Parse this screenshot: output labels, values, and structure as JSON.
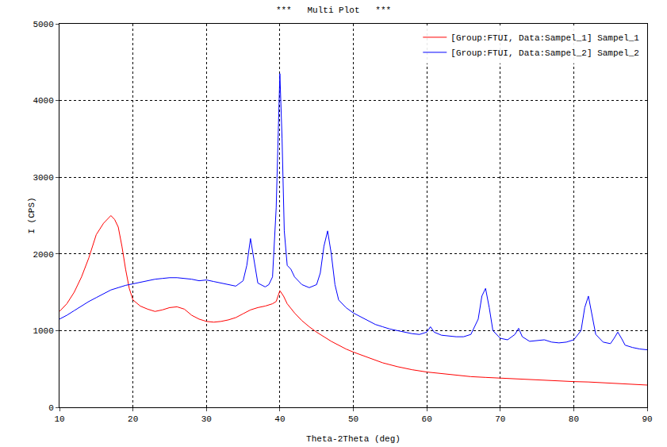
{
  "chart_data": {
    "type": "line",
    "title": "***   Multi Plot   ***",
    "x_label": "Theta-2Theta (deg)",
    "y_label": "I (CPS)",
    "xlim": [
      10,
      90
    ],
    "xticks": [
      10,
      20,
      30,
      40,
      50,
      60,
      70,
      80,
      90
    ],
    "ylim": [
      0,
      5000
    ],
    "yticks": [
      0,
      1000,
      2000,
      3000,
      4000,
      5000
    ],
    "grid": true,
    "legend": "top-right",
    "series": [
      {
        "name": "[Group:FTUI, Data:Sampel_1] Sampel_1",
        "color": "#ff0000",
        "x": [
          10,
          11,
          12,
          13,
          14,
          15,
          16,
          16.5,
          17,
          17.5,
          18,
          18.5,
          19,
          19.5,
          20,
          21,
          22,
          23,
          24,
          25,
          26,
          27,
          28,
          29,
          30,
          31,
          32,
          33,
          34,
          35,
          36,
          37,
          38,
          39,
          39.5,
          40,
          40.5,
          41,
          42,
          43,
          44,
          45,
          46,
          47,
          48,
          49,
          50,
          52,
          54,
          56,
          58,
          60,
          62,
          64,
          66,
          68,
          70,
          72,
          74,
          76,
          78,
          80,
          82,
          84,
          86,
          88,
          90
        ],
        "values": [
          1250,
          1350,
          1500,
          1700,
          1950,
          2250,
          2400,
          2450,
          2500,
          2450,
          2350,
          2100,
          1800,
          1550,
          1400,
          1320,
          1280,
          1250,
          1270,
          1300,
          1310,
          1280,
          1200,
          1150,
          1120,
          1110,
          1120,
          1140,
          1170,
          1220,
          1270,
          1300,
          1320,
          1350,
          1380,
          1520,
          1450,
          1350,
          1230,
          1130,
          1050,
          980,
          920,
          860,
          810,
          760,
          720,
          650,
          580,
          530,
          490,
          460,
          440,
          420,
          400,
          390,
          380,
          370,
          360,
          350,
          340,
          335,
          330,
          320,
          310,
          300,
          290
        ]
      },
      {
        "name": "[Group:FTUI, Data:Sampel_2] Sampel_2",
        "color": "#0000ff",
        "x": [
          10,
          11,
          12,
          13,
          14,
          15,
          16,
          17,
          18,
          19,
          20,
          21,
          22,
          23,
          24,
          25,
          26,
          27,
          28,
          29,
          30,
          31,
          32,
          33,
          34,
          35,
          35.5,
          36,
          36.5,
          37,
          38,
          38.5,
          39,
          39.5,
          40,
          40.3,
          40.6,
          41,
          41.5,
          42,
          43,
          44,
          45,
          45.5,
          46,
          46.5,
          47,
          47.5,
          48,
          49,
          50,
          51,
          52,
          53,
          54,
          55,
          56,
          57,
          58,
          59,
          60,
          60.5,
          61,
          62,
          63,
          64,
          65,
          66,
          67,
          67.5,
          68,
          68.5,
          69,
          70,
          71,
          72,
          72.5,
          73,
          74,
          75,
          76,
          77,
          78,
          79,
          80,
          81,
          81.5,
          82,
          82.5,
          83,
          84,
          85,
          85.5,
          86,
          86.5,
          87,
          88,
          89,
          90
        ],
        "values": [
          1150,
          1200,
          1260,
          1320,
          1380,
          1430,
          1480,
          1530,
          1560,
          1590,
          1610,
          1630,
          1650,
          1670,
          1680,
          1690,
          1690,
          1680,
          1670,
          1650,
          1660,
          1640,
          1620,
          1600,
          1580,
          1650,
          1850,
          2200,
          1900,
          1620,
          1570,
          1600,
          1700,
          2600,
          4350,
          3500,
          2300,
          1850,
          1800,
          1700,
          1600,
          1560,
          1600,
          1750,
          2100,
          2300,
          2000,
          1600,
          1400,
          1300,
          1230,
          1180,
          1130,
          1080,
          1050,
          1020,
          1000,
          980,
          960,
          950,
          980,
          1050,
          980,
          940,
          930,
          920,
          920,
          950,
          1150,
          1450,
          1550,
          1300,
          1000,
          900,
          880,
          950,
          1030,
          920,
          860,
          870,
          880,
          850,
          840,
          850,
          880,
          1000,
          1300,
          1450,
          1200,
          950,
          850,
          830,
          900,
          980,
          900,
          810,
          780,
          760,
          750
        ]
      }
    ]
  }
}
